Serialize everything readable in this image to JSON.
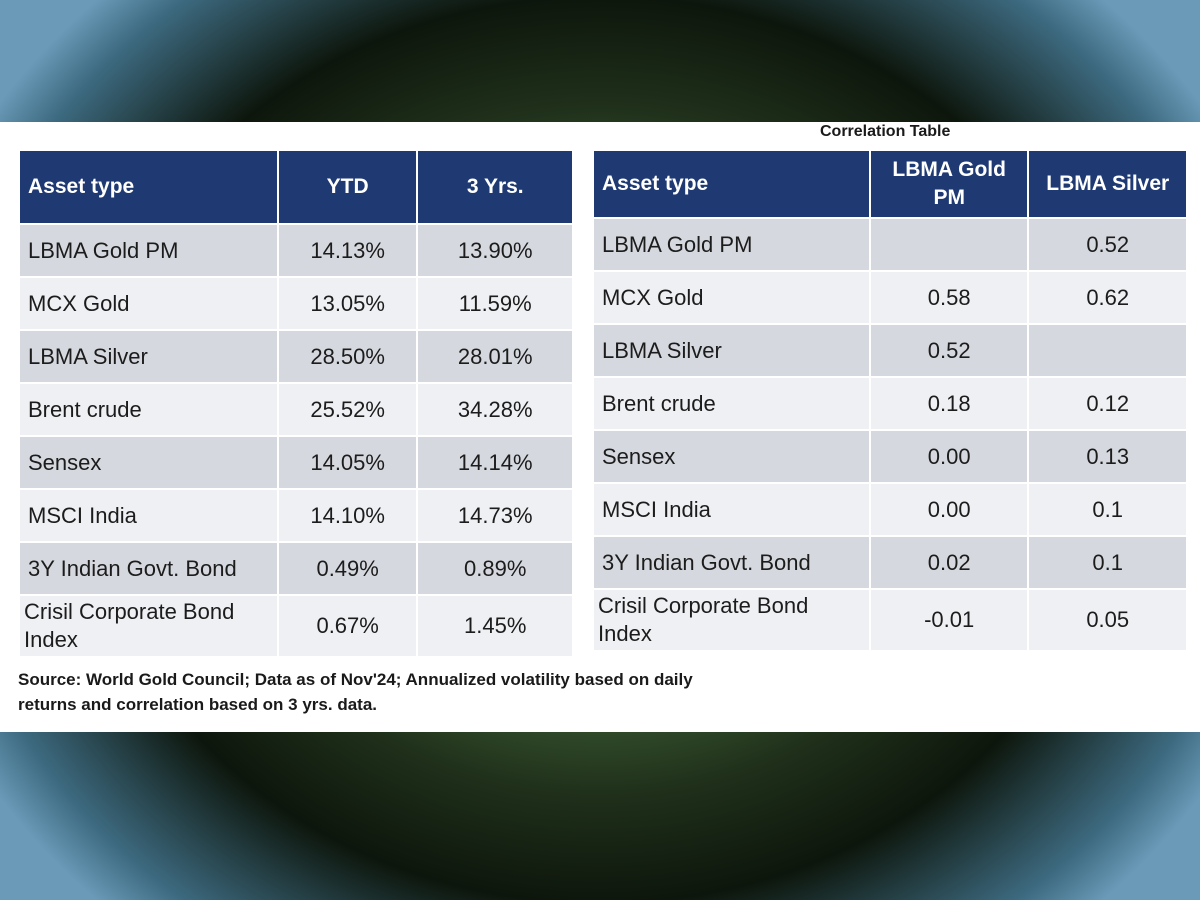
{
  "correlation_title": "Correlation Table",
  "returns_table": {
    "headers": [
      "Asset type",
      "YTD",
      "3 Yrs."
    ],
    "rows": [
      [
        "LBMA Gold PM",
        "14.13%",
        "13.90%"
      ],
      [
        "MCX Gold",
        "13.05%",
        "11.59%"
      ],
      [
        "LBMA Silver",
        "28.50%",
        "28.01%"
      ],
      [
        "Brent crude",
        "25.52%",
        "34.28%"
      ],
      [
        "Sensex",
        "14.05%",
        "14.14%"
      ],
      [
        "MSCI India",
        "14.10%",
        "14.73%"
      ],
      [
        "3Y Indian Govt. Bond",
        "0.49%",
        "0.89%"
      ],
      [
        "Crisil Corporate Bond Index",
        "0.67%",
        "1.45%"
      ]
    ]
  },
  "correlation_table": {
    "headers": [
      "Asset type",
      "LBMA Gold PM",
      "LBMA Silver"
    ],
    "rows": [
      [
        "LBMA Gold PM",
        "",
        "0.52"
      ],
      [
        "MCX Gold",
        "0.58",
        "0.62"
      ],
      [
        "LBMA Silver",
        "0.52",
        ""
      ],
      [
        "Brent crude",
        "0.18",
        "0.12"
      ],
      [
        "Sensex",
        "0.00",
        "0.13"
      ],
      [
        "MSCI India",
        "0.00",
        "0.1"
      ],
      [
        "3Y Indian Govt. Bond",
        "0.02",
        "0.1"
      ],
      [
        "Crisil Corporate Bond Index",
        "-0.01",
        "0.05"
      ]
    ]
  },
  "source_note": "Source: World Gold Council; Data as of Nov'24; Annualized volatility based on daily returns and correlation based on 3 yrs. data."
}
